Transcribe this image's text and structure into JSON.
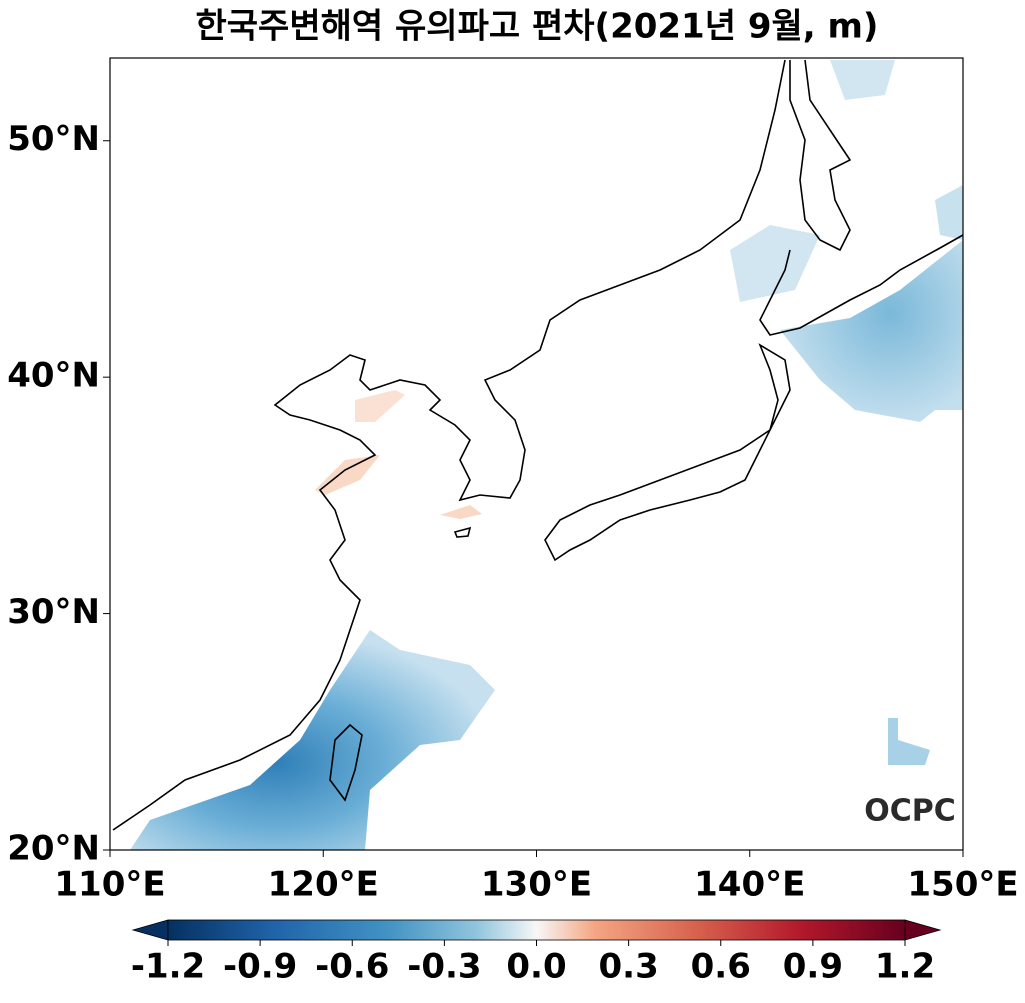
{
  "chart_data": {
    "type": "map",
    "title": "한국주변해역 유의파고 편차(2021년 9월, m)",
    "xlim": [
      110,
      150
    ],
    "ylim": [
      20,
      53.5
    ],
    "xticks": [
      {
        "value": 110,
        "label": "110°E"
      },
      {
        "value": 120,
        "label": "120°E"
      },
      {
        "value": 130,
        "label": "130°E"
      },
      {
        "value": 140,
        "label": "140°E"
      },
      {
        "value": 150,
        "label": "150°E"
      }
    ],
    "yticks": [
      {
        "value": 20,
        "label": "20°N"
      },
      {
        "value": 30,
        "label": "30°N"
      },
      {
        "value": 40,
        "label": "40°N"
      },
      {
        "value": 50,
        "label": "50°N"
      }
    ],
    "colorbar": {
      "lim": [
        -1.2,
        1.2
      ],
      "ticks": [
        -1.2,
        -0.9,
        -0.6,
        -0.3,
        {
          "value": 0,
          "label": "0.0"
        },
        0.3,
        0.6,
        0.9,
        1.2
      ]
    },
    "watermark": "OCPC"
  }
}
